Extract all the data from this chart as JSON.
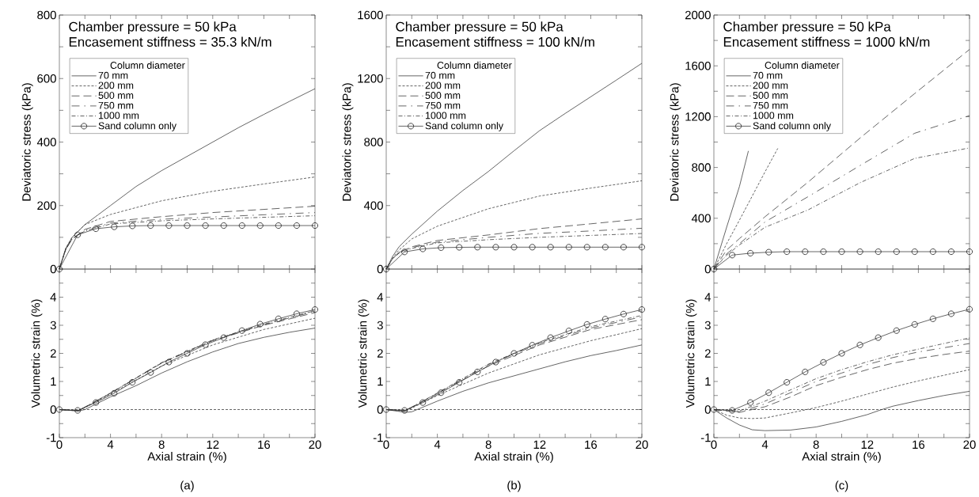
{
  "chart_data": [
    {
      "type": "line",
      "ylabel": "Deviatoric stress (kPa)",
      "annotations": [
        "Chamber pressure = 50 kPa",
        "Encasement stiffness = 35.3 kN/m"
      ],
      "legend": "top left",
      "legend_title": "Column diameter",
      "tick_labels": "y",
      "xlim": [
        0,
        20
      ],
      "ylim": [
        0,
        800
      ],
      "yticks": [
        0,
        {
          "value": 100,
          "label": null
        },
        200,
        {
          "value": 300,
          "label": null
        },
        400,
        {
          "value": 500,
          "label": null
        },
        600,
        {
          "value": 700,
          "label": null
        },
        800
      ],
      "series": [
        {
          "name": "70 mm",
          "color": "#333333",
          "line_style": "solid",
          "x": [
            0,
            0.5,
            1,
            1.5,
            2,
            3,
            4,
            6,
            8,
            10,
            12,
            14,
            16,
            18,
            20
          ],
          "values": [
            0,
            65,
            100,
            120,
            140,
            170,
            200,
            260,
            310,
            355,
            400,
            445,
            487,
            528,
            568
          ]
        },
        {
          "name": "200 mm",
          "color": "#333333",
          "line_style": "dashed",
          "x": [
            0,
            0.5,
            1,
            2,
            4,
            8,
            12,
            16,
            20
          ],
          "values": [
            0,
            65,
            100,
            140,
            172,
            215,
            245,
            268,
            290
          ]
        },
        {
          "name": "500 mm",
          "color": "#333333",
          "line_style": "dashed",
          "x": [
            0,
            0.5,
            1,
            2,
            4,
            8,
            12,
            16,
            20
          ],
          "values": [
            0,
            62,
            95,
            125,
            150,
            165,
            178,
            188,
            198
          ]
        },
        {
          "name": "750 mm",
          "color": "#3a3a3a",
          "line_style": "dashed",
          "x": [
            0,
            0.5,
            1,
            2,
            4,
            8,
            12,
            16,
            20
          ],
          "values": [
            0,
            62,
            95,
            122,
            145,
            157,
            164,
            171,
            178
          ]
        },
        {
          "name": "1000 mm",
          "color": "#2b2b2b",
          "line_style": "dashed",
          "x": [
            0,
            0.5,
            1,
            2,
            4,
            8,
            12,
            16,
            20
          ],
          "values": [
            0,
            62,
            95,
            120,
            142,
            152,
            158,
            163,
            168
          ]
        },
        {
          "name": "Sand column only",
          "color": "#333333",
          "line_style": "solid",
          "marker": "circle",
          "x": [
            0,
            1.43,
            2.86,
            4.29,
            5.71,
            7.14,
            8.57,
            10,
            11.43,
            12.86,
            14.29,
            15.71,
            17.14,
            18.57,
            20
          ],
          "values": [
            0,
            108,
            127,
            133,
            136,
            137,
            137,
            137,
            137,
            137,
            137,
            137,
            137,
            137,
            137
          ]
        }
      ]
    },
    {
      "type": "line",
      "ylabel": "Deviatoric stress (kPa)",
      "annotations": [
        "Chamber pressure = 50 kPa",
        "Encasement stiffness = 100 kN/m"
      ],
      "legend": "top left",
      "legend_title": "Column diameter",
      "tick_labels": "y",
      "xlim": [
        0,
        20
      ],
      "ylim": [
        0,
        1600
      ],
      "yticks": [
        0,
        {
          "value": 200,
          "label": null
        },
        400,
        {
          "value": 600,
          "label": null
        },
        800,
        {
          "value": 1000,
          "label": null
        },
        1200,
        {
          "value": 1400,
          "label": null
        },
        1600
      ],
      "series": [
        {
          "name": "70 mm",
          "color": "#333333",
          "line_style": "solid",
          "x": [
            0,
            0.5,
            1,
            2,
            4,
            6,
            8,
            10,
            12,
            14,
            16,
            18,
            20
          ],
          "values": [
            0,
            80,
            140,
            220,
            365,
            495,
            615,
            745,
            872,
            980,
            1085,
            1190,
            1296
          ]
        },
        {
          "name": "200 mm",
          "color": "#333333",
          "line_style": "dashed",
          "x": [
            0,
            0.5,
            1,
            2,
            4,
            8,
            12,
            16,
            20
          ],
          "values": [
            0,
            70,
            120,
            190,
            270,
            380,
            460,
            510,
            556
          ]
        },
        {
          "name": "500 mm",
          "color": "#333333",
          "line_style": "dashed",
          "x": [
            0,
            0.5,
            1,
            2,
            4,
            8,
            12,
            16,
            20
          ],
          "values": [
            0,
            65,
            105,
            140,
            180,
            215,
            255,
            285,
            316
          ]
        },
        {
          "name": "750 mm",
          "color": "#333333",
          "line_style": "dashed",
          "x": [
            0,
            0.5,
            1,
            2,
            4,
            8,
            12,
            16,
            20
          ],
          "values": [
            0,
            65,
            105,
            135,
            170,
            200,
            225,
            240,
            257
          ]
        },
        {
          "name": "1000 mm",
          "color": "#333333",
          "line_style": "dashed",
          "x": [
            0,
            0.5,
            1,
            2,
            4,
            8,
            12,
            16,
            20
          ],
          "values": [
            0,
            65,
            100,
            130,
            165,
            185,
            200,
            212,
            224
          ]
        },
        {
          "name": "Sand column only",
          "color": "#333333",
          "line_style": "solid",
          "marker": "circle",
          "x": [
            0,
            1.43,
            2.86,
            4.29,
            5.71,
            7.14,
            8.57,
            10,
            11.43,
            12.86,
            14.29,
            15.71,
            17.14,
            18.57,
            20
          ],
          "values": [
            0,
            108,
            127,
            135,
            137,
            138,
            138,
            138,
            138,
            138,
            138,
            138,
            138,
            138,
            138
          ]
        }
      ]
    },
    {
      "type": "line",
      "ylabel": "Deviatoric stress (kPa)",
      "annotations": [
        "Chamber pressure = 50 kPa",
        "Encasement stiffness = 1000 kN/m"
      ],
      "legend": "top left",
      "legend_title": "Column diameter",
      "tick_labels": "y",
      "xlim": [
        0,
        20
      ],
      "ylim": [
        0,
        2000
      ],
      "yticks": [
        0,
        {
          "value": 200,
          "label": null
        },
        400,
        {
          "value": 600,
          "label": null
        },
        800,
        {
          "value": 1000,
          "label": null
        },
        1200,
        {
          "value": 1400,
          "label": null
        },
        1600,
        {
          "value": 1800,
          "label": null
        },
        2000
      ],
      "series": [
        {
          "name": "70 mm",
          "color": "#333333",
          "line_style": "solid",
          "x": [
            0,
            1,
            2,
            2.7
          ],
          "values": [
            0,
            330,
            650,
            930
          ]
        },
        {
          "name": "200 mm",
          "color": "#333333",
          "line_style": "dashed",
          "x": [
            0,
            1,
            2,
            3,
            4,
            5
          ],
          "values": [
            0,
            200,
            385,
            575,
            765,
            950
          ]
        },
        {
          "name": "500 mm",
          "color": "#333333",
          "line_style": "dashed",
          "x": [
            0,
            1,
            2,
            4,
            7.35,
            11.5,
            15.7,
            20
          ],
          "values": [
            0,
            150,
            240,
            412,
            683,
            1037,
            1381,
            1729
          ]
        },
        {
          "name": "750 mm",
          "color": "#333333",
          "line_style": "dashed",
          "x": [
            0,
            1,
            2,
            4,
            7.35,
            11.5,
            15.7,
            20
          ],
          "values": [
            0,
            120,
            200,
            371,
            569,
            819,
            1069,
            1208
          ]
        },
        {
          "name": "1000 mm",
          "color": "#333333",
          "line_style": "dashed",
          "x": [
            0,
            1,
            2,
            4,
            7.35,
            11.5,
            15.7,
            20
          ],
          "values": [
            0,
            110,
            190,
            329,
            465,
            683,
            871,
            954
          ]
        },
        {
          "name": "Sand column only",
          "color": "#333333",
          "line_style": "solid",
          "marker": "circle",
          "x": [
            0,
            1.43,
            2.86,
            4.29,
            5.71,
            7.14,
            8.57,
            10,
            11.43,
            12.86,
            14.29,
            15.71,
            17.14,
            18.57,
            20
          ],
          "values": [
            0,
            110,
            125,
            133,
            137,
            137,
            137,
            137,
            137,
            137,
            137,
            137,
            137,
            137,
            137
          ]
        }
      ]
    },
    {
      "type": "line",
      "xlabel": "Axial strain (%)",
      "ylabel": "Volumetric strain (%)",
      "annotations": [
        "(a)"
      ],
      "xlim": [
        0,
        20
      ],
      "ylim": [
        -1,
        5
      ],
      "xticks": [
        0,
        {
          "value": 2,
          "label": null
        },
        4,
        {
          "value": 6,
          "label": null
        },
        8,
        {
          "value": 10,
          "label": null
        },
        12,
        {
          "value": 14,
          "label": null
        },
        16,
        {
          "value": 18,
          "label": null
        },
        20
      ],
      "yticks": [
        -1,
        {
          "value": -0.5,
          "label": null
        },
        0,
        {
          "value": 0.5,
          "label": null
        },
        1,
        {
          "value": 1.5,
          "label": null
        },
        2,
        {
          "value": 2.5,
          "label": null
        },
        3,
        {
          "value": 3.5,
          "label": null
        },
        4,
        {
          "value": 4.5,
          "label": null
        }
      ],
      "ref_lines": [
        {
          "axis": "y",
          "value": 0,
          "color": "#333333",
          "line_style": "dashed"
        }
      ],
      "series": [
        {
          "color": "#333333",
          "line_style": "solid",
          "x": [
            0,
            1.5,
            2,
            4,
            6,
            8,
            10,
            12,
            14,
            16,
            18,
            20
          ],
          "values": [
            0,
            -0.05,
            0,
            0.45,
            0.85,
            1.3,
            1.7,
            2.05,
            2.35,
            2.57,
            2.75,
            2.9
          ]
        },
        {
          "color": "#333333",
          "line_style": "dashed",
          "x": [
            0,
            1.5,
            4,
            8,
            12,
            16,
            20
          ],
          "values": [
            0,
            -0.05,
            0.55,
            1.55,
            2.3,
            2.85,
            3.25
          ]
        },
        {
          "color": "#333333",
          "line_style": "dashed",
          "x": [
            0,
            1.5,
            4,
            8,
            12,
            16,
            20
          ],
          "values": [
            0,
            -0.04,
            0.58,
            1.65,
            2.45,
            3.0,
            3.45
          ]
        },
        {
          "color": "#333333",
          "line_style": "dashed",
          "x": [
            0,
            1.5,
            4,
            8,
            12,
            16,
            20
          ],
          "values": [
            0,
            -0.04,
            0.58,
            1.66,
            2.47,
            3.02,
            3.5
          ]
        },
        {
          "color": "#333333",
          "line_style": "dashed",
          "x": [
            0,
            1.5,
            4,
            8,
            12,
            16,
            20
          ],
          "values": [
            0,
            -0.04,
            0.59,
            1.67,
            2.48,
            3.04,
            3.52
          ]
        },
        {
          "color": "#333333",
          "line_style": "solid",
          "marker": "circle",
          "x": [
            0,
            1.43,
            2.86,
            4.29,
            5.71,
            7.14,
            8.57,
            10,
            11.43,
            12.86,
            14.29,
            15.71,
            17.14,
            18.57,
            20
          ],
          "values": [
            0,
            -0.03,
            0.25,
            0.58,
            0.97,
            1.32,
            1.69,
            2.0,
            2.31,
            2.56,
            2.81,
            3.04,
            3.23,
            3.41,
            3.56
          ]
        }
      ]
    },
    {
      "type": "line",
      "xlabel": "Axial strain (%)",
      "ylabel": "Volumetric strain (%)",
      "annotations": [
        "(b)"
      ],
      "xlim": [
        0,
        20
      ],
      "ylim": [
        -1,
        5
      ],
      "xticks": [
        0,
        {
          "value": 2,
          "label": null
        },
        4,
        {
          "value": 6,
          "label": null
        },
        8,
        {
          "value": 10,
          "label": null
        },
        12,
        {
          "value": 14,
          "label": null
        },
        16,
        {
          "value": 18,
          "label": null
        },
        20
      ],
      "yticks": [
        -1,
        {
          "value": -0.5,
          "label": null
        },
        0,
        {
          "value": 0.5,
          "label": null
        },
        1,
        {
          "value": 1.5,
          "label": null
        },
        2,
        {
          "value": 2.5,
          "label": null
        },
        3,
        {
          "value": 3.5,
          "label": null
        },
        4,
        {
          "value": 4.5,
          "label": null
        }
      ],
      "ref_lines": [
        {
          "axis": "y",
          "value": 0,
          "color": "#333333",
          "line_style": "dashed"
        }
      ],
      "series": [
        {
          "color": "#333333",
          "line_style": "solid",
          "x": [
            0,
            1.5,
            2,
            4,
            6,
            8,
            10,
            12,
            14,
            16,
            18,
            20
          ],
          "values": [
            0,
            -0.1,
            -0.08,
            0.3,
            0.65,
            0.95,
            1.2,
            1.45,
            1.7,
            1.92,
            2.1,
            2.3
          ]
        },
        {
          "color": "#333333",
          "line_style": "dashed",
          "x": [
            0,
            1.5,
            4,
            8,
            12,
            16,
            20
          ],
          "values": [
            0,
            -0.06,
            0.5,
            1.3,
            1.95,
            2.45,
            2.88
          ]
        },
        {
          "color": "#333333",
          "line_style": "dashed",
          "x": [
            0,
            1.5,
            4,
            8,
            12,
            16,
            20
          ],
          "values": [
            0,
            -0.04,
            0.57,
            1.55,
            2.3,
            2.85,
            3.2
          ]
        },
        {
          "color": "#333333",
          "line_style": "dashed",
          "x": [
            0,
            1.5,
            4,
            8,
            12,
            16,
            20
          ],
          "values": [
            0,
            -0.04,
            0.58,
            1.6,
            2.35,
            2.9,
            3.3
          ]
        },
        {
          "color": "#333333",
          "line_style": "dashed",
          "x": [
            0,
            1.5,
            4,
            8,
            12,
            16,
            20
          ],
          "values": [
            0,
            -0.04,
            0.59,
            1.62,
            2.38,
            2.95,
            3.35
          ]
        },
        {
          "color": "#333333",
          "line_style": "solid",
          "marker": "circle",
          "x": [
            0,
            1.43,
            2.86,
            4.29,
            5.71,
            7.14,
            8.57,
            10,
            11.43,
            12.86,
            14.29,
            15.71,
            17.14,
            18.57,
            20
          ],
          "values": [
            0,
            -0.03,
            0.25,
            0.6,
            0.97,
            1.34,
            1.69,
            2.0,
            2.29,
            2.56,
            2.8,
            3.03,
            3.22,
            3.4,
            3.56
          ]
        }
      ]
    },
    {
      "type": "line",
      "xlabel": "Axial strain (%)",
      "ylabel": "Volumetric strain (%)",
      "annotations": [
        "(c)"
      ],
      "xlim": [
        0,
        20
      ],
      "ylim": [
        -1,
        5
      ],
      "xticks": [
        0,
        {
          "value": 2,
          "label": null
        },
        4,
        {
          "value": 6,
          "label": null
        },
        8,
        {
          "value": 10,
          "label": null
        },
        12,
        {
          "value": 14,
          "label": null
        },
        16,
        {
          "value": 18,
          "label": null
        },
        20
      ],
      "yticks": [
        -1,
        {
          "value": -0.5,
          "label": null
        },
        0,
        {
          "value": 0.5,
          "label": null
        },
        1,
        {
          "value": 1.5,
          "label": null
        },
        2,
        {
          "value": 2.5,
          "label": null
        },
        3,
        {
          "value": 3.5,
          "label": null
        },
        4,
        {
          "value": 4.5,
          "label": null
        }
      ],
      "ref_lines": [
        {
          "axis": "y",
          "value": 0,
          "color": "#333333",
          "line_style": "dashed"
        }
      ],
      "series": [
        {
          "color": "#333333",
          "line_style": "solid",
          "x": [
            0,
            1,
            2,
            3,
            4,
            6,
            8,
            10,
            12,
            13,
            14,
            16,
            18,
            20
          ],
          "values": [
            0,
            -0.3,
            -0.55,
            -0.72,
            -0.75,
            -0.73,
            -0.62,
            -0.42,
            -0.18,
            -0.02,
            0.12,
            0.32,
            0.5,
            0.65
          ]
        },
        {
          "color": "#333333",
          "line_style": "dashed",
          "x": [
            0,
            1,
            2,
            3,
            4,
            6,
            8,
            10,
            12,
            14,
            16,
            18,
            20
          ],
          "values": [
            0,
            -0.2,
            -0.3,
            -0.32,
            -0.3,
            -0.12,
            0.07,
            0.3,
            0.55,
            0.8,
            1.02,
            1.22,
            1.42
          ]
        },
        {
          "color": "#333333",
          "line_style": "dashed",
          "x": [
            0,
            2,
            4,
            6,
            8,
            10,
            12,
            14,
            16,
            18,
            20
          ],
          "values": [
            0,
            -0.1,
            0.1,
            0.45,
            0.85,
            1.15,
            1.42,
            1.65,
            1.82,
            1.96,
            2.08
          ]
        },
        {
          "color": "#333333",
          "line_style": "dashed",
          "x": [
            0,
            2,
            4,
            6,
            8,
            10,
            12,
            14,
            16,
            18,
            20
          ],
          "values": [
            0,
            -0.08,
            0.2,
            0.6,
            1.0,
            1.3,
            1.6,
            1.85,
            2.05,
            2.2,
            2.35
          ]
        },
        {
          "color": "#333333",
          "line_style": "dashed",
          "x": [
            0,
            2,
            4,
            6,
            8,
            10,
            12,
            14,
            16,
            18,
            20
          ],
          "values": [
            0,
            -0.05,
            0.3,
            0.7,
            1.1,
            1.42,
            1.7,
            1.95,
            2.15,
            2.35,
            2.55
          ]
        },
        {
          "color": "#333333",
          "line_style": "solid",
          "marker": "circle",
          "x": [
            0,
            1.43,
            2.86,
            4.29,
            5.71,
            7.14,
            8.57,
            10,
            11.43,
            12.86,
            14.29,
            15.71,
            17.14,
            18.57,
            20
          ],
          "values": [
            0,
            -0.03,
            0.25,
            0.6,
            0.97,
            1.34,
            1.68,
            2.0,
            2.3,
            2.56,
            2.81,
            3.03,
            3.23,
            3.41,
            3.57
          ]
        }
      ]
    }
  ]
}
